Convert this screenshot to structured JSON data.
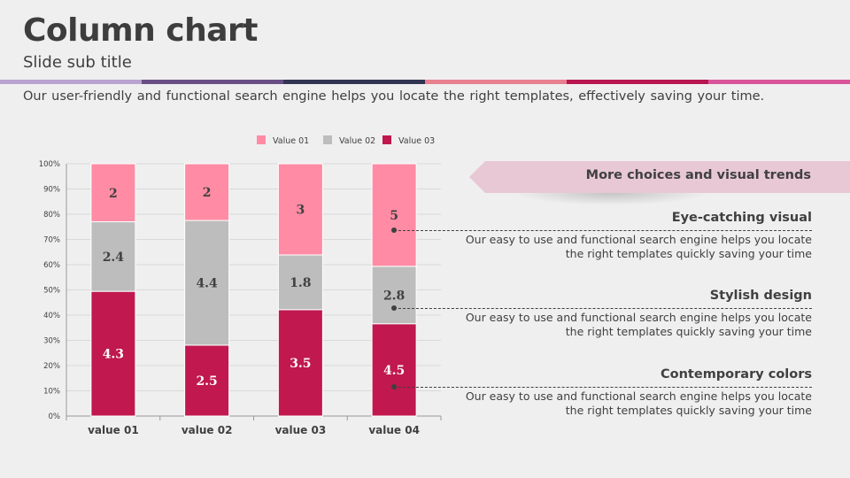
{
  "slide": {
    "title": "Column chart",
    "subtitle": "Slide sub title",
    "description": "Our user-friendly and functional search engine helps you locate the right templates, effectively saving your time."
  },
  "colors": {
    "bar_segments": [
      "#b9a3d0",
      "#6a4f86",
      "#323453",
      "#e8808f",
      "#b7164f",
      "#d9559a"
    ],
    "value01": "#ff8ba4",
    "value02": "#bdbdbd",
    "value03": "#c0184f",
    "banner": "#e8c8d4"
  },
  "banner": {
    "text": "More choices and visual trends"
  },
  "items": [
    {
      "title": "Eye-catching visual",
      "text": "Our easy to use and functional search engine helps you locate the right templates quickly saving your time"
    },
    {
      "title": "Stylish design",
      "text": "Our easy to use and functional search engine helps you locate the right templates quickly saving your time"
    },
    {
      "title": "Contemporary colors",
      "text": "Our easy to use and functional search engine helps you locate the right templates quickly saving your time"
    }
  ],
  "chart_data": {
    "type": "bar",
    "stacked": "percent",
    "categories": [
      "value 01",
      "value 02",
      "value 03",
      "value 04"
    ],
    "series": [
      {
        "name": "Value 03",
        "values": [
          4.3,
          2.5,
          3.5,
          4.5
        ]
      },
      {
        "name": "Value 02",
        "values": [
          2.4,
          4.4,
          1.8,
          2.8
        ]
      },
      {
        "name": "Value 01",
        "values": [
          2,
          2,
          3,
          5
        ]
      }
    ],
    "legend_order": [
      "Value 01",
      "Value 02",
      "Value 03"
    ],
    "yticks": [
      "0%",
      "10%",
      "20%",
      "30%",
      "40%",
      "50%",
      "60%",
      "70%",
      "80%",
      "90%",
      "100%"
    ],
    "ylim": [
      0,
      100
    ],
    "grid": true,
    "legend_position": "top"
  }
}
